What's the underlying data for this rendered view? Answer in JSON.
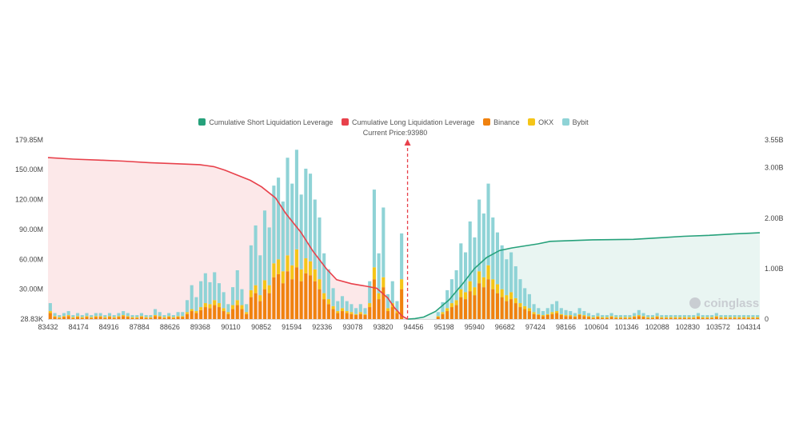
{
  "legend": [
    {
      "label": "Cumulative Short Liquidation Leverage",
      "color": "#26a17b"
    },
    {
      "label": "Cumulative Long Liquidation Leverage",
      "color": "#e8414b"
    },
    {
      "label": "Binance",
      "color": "#f0820f"
    },
    {
      "label": "OKX",
      "color": "#f5c518"
    },
    {
      "label": "Bybit",
      "color": "#8fd3d6"
    }
  ],
  "current_price_label": "Current Price:93980",
  "watermark": "coinglass",
  "chart_data": {
    "type": "bar",
    "current_price": 93980,
    "x_ticks": [
      "83432",
      "84174",
      "84916",
      "87884",
      "88626",
      "89368",
      "90110",
      "90852",
      "91594",
      "92336",
      "93078",
      "93820",
      "94456",
      "95198",
      "95940",
      "96682",
      "97424",
      "98166",
      "100604",
      "101346",
      "102088",
      "102830",
      "103572",
      "104314"
    ],
    "y_left_ticks": [
      "28.83K",
      "30.00M",
      "60.00M",
      "90.00M",
      "120.00M",
      "150.00M",
      "179.85M"
    ],
    "y_left_range": [
      0,
      179.85
    ],
    "y_right_ticks": [
      "0",
      "1.00B",
      "2.00B",
      "3.00B",
      "3.55B"
    ],
    "y_right_range": [
      0,
      3.55
    ],
    "units_left": "M",
    "units_right": "B",
    "bars": {
      "description_units": "millions, stacked Binance/OKX/Bybit per price bucket",
      "binance": [
        6,
        2,
        1,
        2,
        3,
        1,
        2,
        1,
        2,
        1,
        2,
        2,
        1,
        2,
        1,
        2,
        3,
        2,
        1,
        1,
        2,
        1,
        1,
        3,
        2,
        1,
        2,
        1,
        2,
        2,
        5,
        8,
        6,
        9,
        12,
        11,
        14,
        12,
        8,
        5,
        10,
        14,
        10,
        5,
        22,
        26,
        18,
        30,
        26,
        42,
        45,
        36,
        48,
        40,
        52,
        38,
        46,
        44,
        38,
        30,
        20,
        15,
        10,
        6,
        8,
        6,
        5,
        4,
        5,
        4,
        12,
        40,
        20,
        32,
        8,
        12,
        6,
        30,
        0,
        0,
        0,
        0,
        0,
        0,
        0,
        2,
        5,
        8,
        12,
        14,
        22,
        20,
        28,
        24,
        36,
        32,
        40,
        30,
        26,
        22,
        18,
        20,
        16,
        12,
        10,
        8,
        5,
        4,
        3,
        4,
        5,
        6,
        4,
        3,
        3,
        2,
        4,
        3,
        2,
        1,
        2,
        1,
        1,
        2,
        1,
        1,
        1,
        1,
        2,
        3,
        2,
        1,
        1,
        2,
        1,
        1,
        1,
        1,
        1,
        1,
        1,
        1,
        2,
        1,
        1,
        1,
        2,
        1,
        1,
        1,
        1,
        1,
        1,
        1,
        1,
        1
      ],
      "okx": [
        2,
        1,
        1,
        1,
        1,
        1,
        1,
        1,
        1,
        1,
        1,
        1,
        1,
        1,
        1,
        1,
        1,
        1,
        1,
        1,
        1,
        1,
        1,
        1,
        1,
        1,
        1,
        1,
        1,
        1,
        2,
        2,
        2,
        3,
        4,
        4,
        5,
        4,
        3,
        2,
        4,
        5,
        4,
        2,
        7,
        8,
        6,
        9,
        8,
        14,
        15,
        12,
        16,
        14,
        18,
        12,
        15,
        14,
        12,
        10,
        6,
        5,
        3,
        2,
        3,
        2,
        2,
        1,
        2,
        1,
        4,
        12,
        6,
        10,
        3,
        4,
        2,
        10,
        0,
        0,
        0,
        0,
        0,
        0,
        0,
        1,
        2,
        3,
        4,
        5,
        8,
        7,
        10,
        8,
        12,
        10,
        14,
        10,
        9,
        8,
        6,
        7,
        5,
        4,
        3,
        3,
        2,
        1,
        1,
        1,
        2,
        2,
        1,
        1,
        1,
        1,
        1,
        1,
        1,
        1,
        1,
        1,
        1,
        1,
        1,
        1,
        1,
        1,
        1,
        1,
        1,
        1,
        1,
        1,
        1,
        1,
        1,
        1,
        1,
        1,
        1,
        1,
        1,
        1,
        1,
        1,
        1,
        1,
        1,
        1,
        1,
        1,
        1,
        1,
        1,
        1
      ],
      "bybit": [
        8,
        3,
        2,
        3,
        4,
        2,
        3,
        2,
        3,
        2,
        3,
        3,
        2,
        3,
        2,
        3,
        4,
        3,
        2,
        2,
        3,
        2,
        2,
        6,
        4,
        2,
        3,
        2,
        4,
        4,
        12,
        24,
        14,
        26,
        30,
        22,
        28,
        20,
        16,
        8,
        18,
        30,
        16,
        8,
        45,
        60,
        40,
        70,
        58,
        78,
        82,
        70,
        98,
        82,
        100,
        75,
        90,
        88,
        70,
        62,
        40,
        30,
        18,
        10,
        12,
        10,
        8,
        6,
        8,
        6,
        22,
        78,
        40,
        70,
        14,
        22,
        10,
        46,
        0,
        0,
        0,
        0,
        0,
        0,
        0,
        4,
        10,
        18,
        24,
        30,
        46,
        40,
        60,
        50,
        72,
        64,
        82,
        62,
        52,
        44,
        36,
        40,
        32,
        24,
        18,
        14,
        8,
        6,
        4,
        6,
        8,
        10,
        6,
        5,
        4,
        3,
        6,
        4,
        3,
        2,
        3,
        2,
        2,
        3,
        2,
        2,
        2,
        2,
        3,
        5,
        3,
        2,
        2,
        3,
        2,
        2,
        2,
        2,
        2,
        2,
        2,
        2,
        3,
        2,
        2,
        2,
        3,
        2,
        2,
        2,
        2,
        2,
        2,
        2,
        2,
        2
      ]
    },
    "cumulative_long": {
      "description_units": "billions, decreasing from left edge toward current price",
      "x": [
        83432,
        84174,
        84916,
        85650,
        86400,
        87150,
        87884,
        88300,
        88626,
        89000,
        89368,
        89700,
        90110,
        90400,
        90852,
        91200,
        91594,
        91900,
        92336,
        92700,
        93078,
        93400,
        93600,
        93820,
        93980
      ],
      "values": [
        3.2,
        3.17,
        3.15,
        3.13,
        3.1,
        3.08,
        3.06,
        3.02,
        2.95,
        2.85,
        2.75,
        2.62,
        2.4,
        2.1,
        1.72,
        1.35,
        1.0,
        0.78,
        0.7,
        0.66,
        0.61,
        0.42,
        0.22,
        0.06,
        0.0
      ]
    },
    "cumulative_short": {
      "description_units": "billions, increasing from current price toward right edge",
      "x": [
        93980,
        94200,
        94456,
        94800,
        95198,
        95600,
        95940,
        96300,
        96682,
        97050,
        97424,
        97800,
        98166,
        99400,
        100604,
        101346,
        102088,
        102830,
        103572,
        104000,
        104314
      ],
      "values": [
        0.0,
        0.01,
        0.04,
        0.15,
        0.38,
        0.7,
        1.0,
        1.22,
        1.36,
        1.41,
        1.45,
        1.49,
        1.54,
        1.57,
        1.58,
        1.61,
        1.64,
        1.66,
        1.69,
        1.7,
        1.71
      ]
    }
  }
}
